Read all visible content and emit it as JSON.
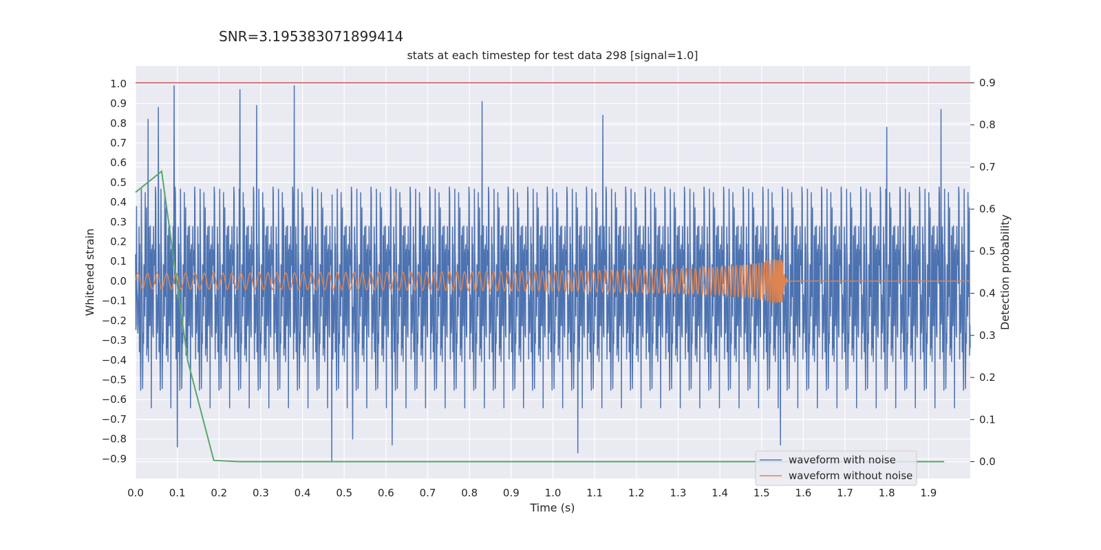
{
  "suptitle": "SNR=3.195383071899414",
  "chart_data": {
    "type": "line",
    "title": "stats at each timestep for test data 298 [signal=1.0]",
    "xlabel": "Time (s)",
    "ylabel_left": "Whitened strain",
    "ylabel_right": "Detection probability",
    "xlim": [
      0.0,
      2.0
    ],
    "ylim_left": [
      -1.0,
      1.09
    ],
    "ylim_right": [
      -0.04,
      0.94
    ],
    "x_ticks": [
      "0.0",
      "0.1",
      "0.2",
      "0.3",
      "0.4",
      "0.5",
      "0.6",
      "0.7",
      "0.8",
      "0.9",
      "1.0",
      "1.1",
      "1.2",
      "1.3",
      "1.4",
      "1.5",
      "1.6",
      "1.7",
      "1.8",
      "1.9"
    ],
    "y_left_ticks": [
      "1.0",
      "0.9",
      "0.8",
      "0.7",
      "0.6",
      "0.5",
      "0.4",
      "0.3",
      "0.2",
      "0.1",
      "0.0",
      "−0.1",
      "−0.2",
      "−0.3",
      "−0.4",
      "−0.5",
      "−0.6",
      "−0.7",
      "−0.8",
      "−0.9"
    ],
    "y_right_ticks": [
      "0.9",
      "0.8",
      "0.7",
      "0.6",
      "0.5",
      "0.4",
      "0.3",
      "0.2",
      "0.1",
      "0.0"
    ],
    "grid": true,
    "legend_placement": "lower-right",
    "series": [
      {
        "name": "waveform with noise",
        "axis": "left",
        "color": "#4c72b0",
        "kind": "noise",
        "x_range": [
          0.0,
          2.0
        ],
        "amplitude_range": [
          -0.9,
          1.0
        ],
        "peaks": [
          {
            "x": 0.03,
            "y": 0.82
          },
          {
            "x": 0.055,
            "y": 0.88
          },
          {
            "x": 0.092,
            "y": 0.99
          },
          {
            "x": 0.25,
            "y": 0.97
          },
          {
            "x": 0.29,
            "y": 0.89
          },
          {
            "x": 0.38,
            "y": 0.99
          },
          {
            "x": 0.83,
            "y": 0.91
          },
          {
            "x": 1.12,
            "y": 0.84
          },
          {
            "x": 1.8,
            "y": 0.78
          },
          {
            "x": 1.93,
            "y": 0.87
          },
          {
            "x": 0.1,
            "y": -0.84
          },
          {
            "x": 0.47,
            "y": -0.91
          },
          {
            "x": 0.52,
            "y": -0.8
          },
          {
            "x": 0.615,
            "y": -0.83
          },
          {
            "x": 1.06,
            "y": -0.87
          },
          {
            "x": 1.545,
            "y": -0.83
          }
        ]
      },
      {
        "name": "waveform without noise",
        "axis": "left",
        "color": "#dd8452",
        "kind": "chirp",
        "x_range": [
          0.0,
          2.0
        ],
        "merger_time": 1.55,
        "amplitude_start": 0.04,
        "amplitude_peak": 0.11
      },
      {
        "name": "detection probability",
        "axis": "right",
        "color": "#55a868",
        "kind": "line",
        "x": [
          0.0,
          0.0625,
          0.125,
          0.1875,
          0.25,
          0.5,
          1.0,
          1.5,
          1.9375
        ],
        "y": [
          0.64,
          0.69,
          0.24,
          0.003,
          0.0,
          0.0,
          0.0,
          0.0,
          0.0
        ]
      },
      {
        "name": "threshold",
        "axis": "right",
        "color": "#c44e52",
        "kind": "hline",
        "y": 0.9
      }
    ]
  }
}
